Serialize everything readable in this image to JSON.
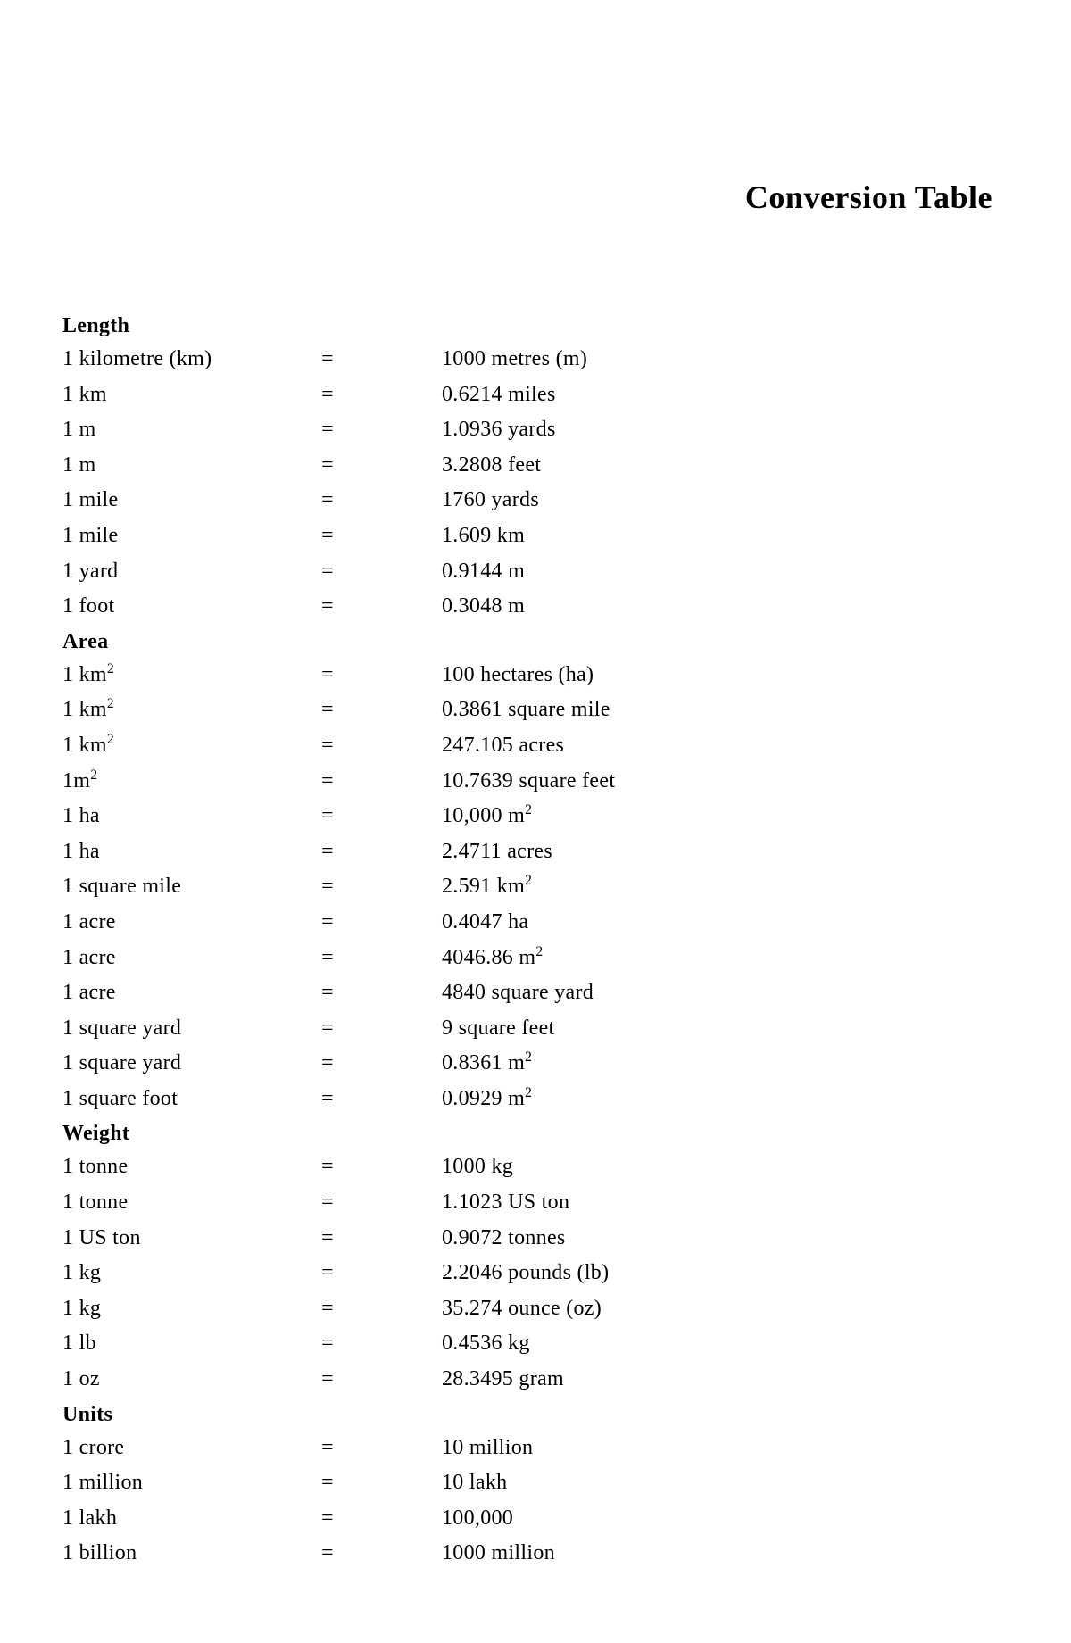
{
  "document": {
    "title": "Conversion Table",
    "text_color": "#000000",
    "background_color": "#ffffff",
    "font_family": "serif",
    "title_fontsize": 36,
    "body_fontsize": 24,
    "sections": [
      {
        "heading": "Length",
        "rows": [
          {
            "from": "1 kilometre (km)",
            "eq": "=",
            "to": "1000 metres (m)"
          },
          {
            "from": "1 km",
            "eq": "=",
            "to": "0.6214 miles"
          },
          {
            "from": "1 m",
            "eq": "=",
            "to": "1.0936 yards"
          },
          {
            "from": "1 m",
            "eq": "=",
            "to": "3.2808 feet"
          },
          {
            "from": "1 mile",
            "eq": "=",
            "to": "1760 yards"
          },
          {
            "from": "1 mile",
            "eq": "=",
            "to": "1.609 km"
          },
          {
            "from": "1 yard",
            "eq": "=",
            "to": "0.9144 m"
          },
          {
            "from": "1 foot",
            "eq": "=",
            "to": "0.3048 m"
          }
        ]
      },
      {
        "heading": "Area",
        "rows": [
          {
            "from": "1 km^2",
            "eq": "=",
            "to": "100 hectares (ha)"
          },
          {
            "from": "1 km^2",
            "eq": "=",
            "to": "0.3861 square mile"
          },
          {
            "from": "1 km^2",
            "eq": "=",
            "to": "247.105 acres"
          },
          {
            "from": "1m^2",
            "eq": "=",
            "to": "10.7639 square feet"
          },
          {
            "from": "1 ha",
            "eq": "=",
            "to": "10,000 m^2"
          },
          {
            "from": "1 ha",
            "eq": "=",
            "to": "2.4711 acres"
          },
          {
            "from": "1 square mile",
            "eq": "=",
            "to": "2.591 km^2"
          },
          {
            "from": "1 acre",
            "eq": "=",
            "to": "0.4047 ha"
          },
          {
            "from": "1 acre",
            "eq": "=",
            "to": "4046.86 m^2"
          },
          {
            "from": "1 acre",
            "eq": "=",
            "to": "4840 square yard"
          },
          {
            "from": "1 square yard",
            "eq": "=",
            "to": "9 square feet"
          },
          {
            "from": "1 square yard",
            "eq": "=",
            "to": "0.8361 m^2"
          },
          {
            "from": "1 square foot",
            "eq": "=",
            "to": "0.0929 m^2"
          }
        ]
      },
      {
        "heading": "Weight",
        "rows": [
          {
            "from": "1 tonne",
            "eq": "=",
            "to": "1000 kg"
          },
          {
            "from": "1 tonne",
            "eq": "=",
            "to": "1.1023 US ton"
          },
          {
            "from": "1 US ton",
            "eq": "=",
            "to": "0.9072 tonnes"
          },
          {
            "from": "1 kg",
            "eq": "=",
            "to": "2.2046 pounds (lb)"
          },
          {
            "from": "1 kg",
            "eq": "=",
            "to": "35.274 ounce (oz)"
          },
          {
            "from": "1 lb",
            "eq": "=",
            "to": "0.4536 kg"
          },
          {
            "from": "1 oz",
            "eq": "=",
            "to": "28.3495 gram"
          }
        ]
      },
      {
        "heading": "Units",
        "rows": [
          {
            "from": "1 crore",
            "eq": "=",
            "to": "10 million"
          },
          {
            "from": "1 million",
            "eq": "=",
            "to": "10 lakh"
          },
          {
            "from": "1 lakh",
            "eq": "=",
            "to": "100,000"
          },
          {
            "from": "1 billion",
            "eq": "=",
            "to": "1000 million"
          }
        ]
      }
    ]
  }
}
